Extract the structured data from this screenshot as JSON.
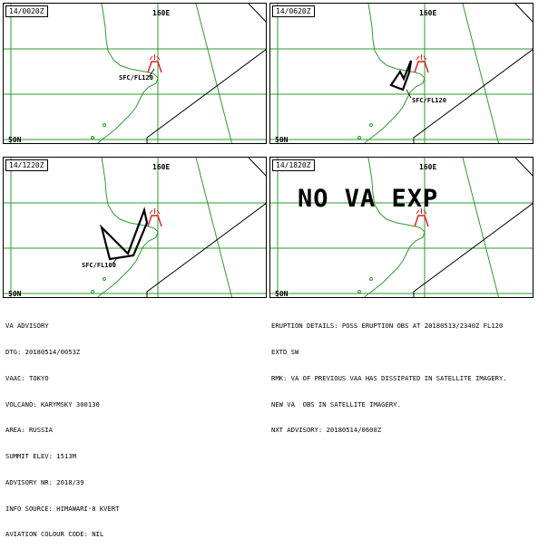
{
  "panels": [
    {
      "time": "14/0020Z",
      "lon_label": "160E",
      "lat_label": "50N",
      "cloud_label": "SFC/FL120"
    },
    {
      "time": "14/0620Z",
      "lon_label": "160E",
      "lat_label": "50N",
      "cloud_label": "SFC/FL120"
    },
    {
      "time": "14/1220Z",
      "lon_label": "160E",
      "lat_label": "50N",
      "cloud_label": "SFC/FL100"
    },
    {
      "time": "14/1820Z",
      "lon_label": "160E",
      "lat_label": "50N",
      "overlay": "NO VA EXP"
    }
  ],
  "advisory_left": [
    "VA ADVISORY",
    "DTG: 20180514/0053Z",
    "VAAC: TOKYO",
    "VOLCANO: KARYMSKY 300130",
    "AREA: RUSSIA",
    "SUMMIT ELEV: 1513M",
    "ADVISORY NR: 2018/39",
    "INFO SOURCE: HIMAWARI-8 KVERT",
    "AVIATION COLOUR CODE: NIL"
  ],
  "advisory_right": [
    "ERUPTION DETAILS: POSS ERUPTION OBS AT 20180513/2340Z FL120",
    "EXTD SW",
    "RMK: VA OF PREVIOUS VAA HAS DISSIPATED IN SATELLITE IMAGERY.",
    "NEW VA  OBS IN SATELLITE IMAGERY.",
    "NXT ADVISORY: 20180514/0600Z"
  ],
  "colors": {
    "grid": "#2e9b2e",
    "volcano": "#e01b1b",
    "ash": "#000000"
  }
}
